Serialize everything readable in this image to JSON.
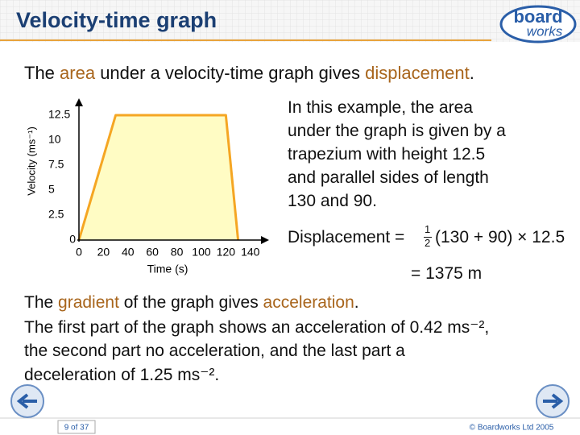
{
  "header": {
    "title": "Velocity-time graph",
    "logo": [
      "board",
      "works"
    ]
  },
  "intro": [
    "The ",
    "area",
    " under a velocity-time graph gives ",
    "displacement",
    "."
  ],
  "chart_data": {
    "type": "area",
    "y_label": "Velocity (ms⁻¹)",
    "x_label": "Time (s)",
    "x": [
      0,
      30,
      120,
      130
    ],
    "series": [
      {
        "values": [
          0,
          12.5,
          12.5,
          0
        ],
        "color": "#f5a623",
        "fill": "#fffcc4"
      }
    ],
    "xlim": [
      0,
      152
    ],
    "ylim": [
      0,
      13.5
    ],
    "xticks": [
      0,
      20,
      40,
      60,
      80,
      100,
      120,
      140
    ],
    "yticks": [
      0,
      2.5,
      5,
      7.5,
      10,
      12.5
    ]
  },
  "explanation": [
    "In this example, the area",
    "under the graph is given by a",
    "trapezium with height 12.5",
    "and parallel sides of length",
    "130 and 90."
  ],
  "formula": {
    "lhs": "Displacement =",
    "numerator": "1",
    "denominator": "2",
    "rhs": "(130 + 90) × 12.5",
    "result": "= 1375 m"
  },
  "gradient": {
    "first_line": [
      "The ",
      "gradient",
      " of the graph gives ",
      "acceleration",
      "."
    ],
    "lines": [
      "The first part of the graph shows an acceleration of 0.42 ms⁻²,",
      "the second part no acceleration, and the last part a",
      "deceleration of 1.25 ms⁻²."
    ]
  },
  "footer": {
    "page": "9 of 37",
    "copyright": "© Boardworks Ltd 2005"
  }
}
